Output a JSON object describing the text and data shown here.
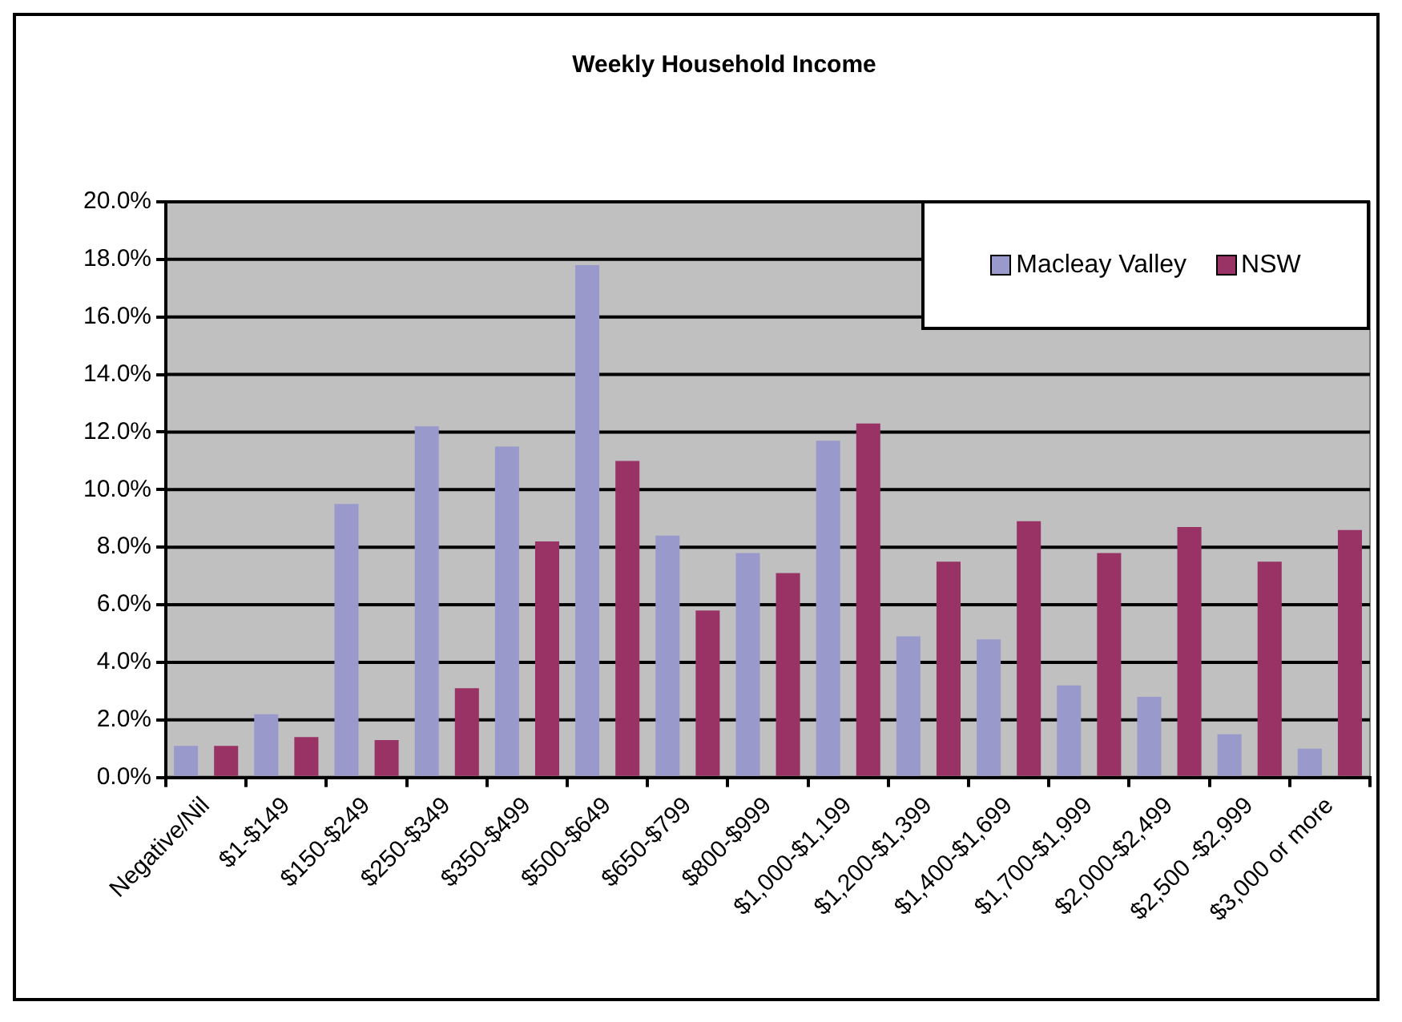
{
  "chart_data": {
    "type": "bar",
    "title": "Weekly Household Income",
    "categories": [
      "Negative/Nil",
      "$1-$149",
      "$150-$249",
      "$250-$349",
      "$350-$499",
      "$500-$649",
      "$650-$799",
      "$800-$999",
      "$1,000-$1,199",
      "$1,200-$1,399",
      "$1,400-$1,699",
      "$1,700-$1,999",
      "$2,000-$2,499",
      "$2,500 -$2,999",
      "$3,000 or more"
    ],
    "series": [
      {
        "name": "Macleay Valley",
        "color": "#9999cc",
        "values": [
          1.1,
          2.2,
          9.5,
          12.2,
          11.5,
          17.8,
          8.4,
          7.8,
          11.7,
          4.9,
          4.8,
          3.2,
          2.8,
          1.5,
          1.0
        ]
      },
      {
        "name": "NSW",
        "color": "#993366",
        "values": [
          1.1,
          1.4,
          1.3,
          3.1,
          8.2,
          11.0,
          5.8,
          7.1,
          12.3,
          7.5,
          8.9,
          7.8,
          8.7,
          7.5,
          8.6
        ]
      }
    ],
    "ylim": [
      0,
      20
    ],
    "yticks": [
      {
        "value": 0,
        "label": "0.0%"
      },
      {
        "value": 2,
        "label": "2.0%"
      },
      {
        "value": 4,
        "label": "4.0%"
      },
      {
        "value": 6,
        "label": "6.0%"
      },
      {
        "value": 8,
        "label": "8.0%"
      },
      {
        "value": 10,
        "label": "10.0%"
      },
      {
        "value": 12,
        "label": "12.0%"
      },
      {
        "value": 14,
        "label": "14.0%"
      },
      {
        "value": 16,
        "label": "16.0%"
      },
      {
        "value": 18,
        "label": "18.0%"
      },
      {
        "value": 20,
        "label": "20.0%"
      }
    ],
    "grid": "y",
    "legend": "top right"
  }
}
